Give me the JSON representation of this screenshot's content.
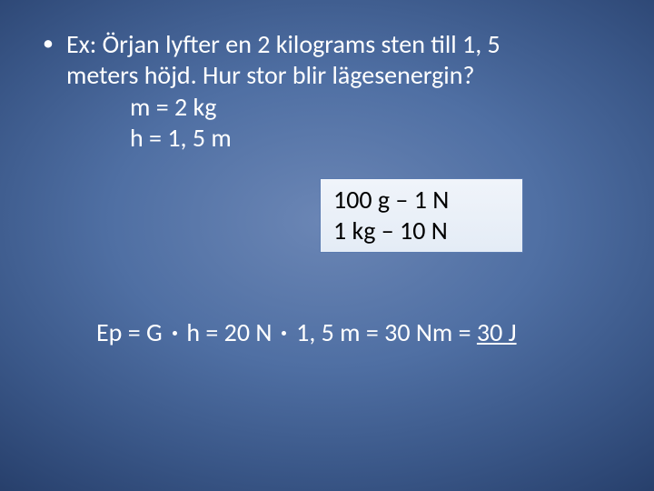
{
  "slide": {
    "background": {
      "type": "radial-gradient",
      "center_color": "#6b86b5",
      "outer_color": "#1a2f55"
    },
    "bullet": {
      "marker": "•",
      "line1": "Ex: Örjan lyfter en 2 kilograms sten till 1, 5",
      "line2": "meters höjd. Hur stor blir lägesenergin?"
    },
    "givens": {
      "mass": "m = 2 kg",
      "height": "h = 1, 5 m"
    },
    "info_box": {
      "line1": "100 g – 1 N",
      "line2": "1 kg – 10 N",
      "background_color": "#e8eff8",
      "border_color": "#5b7bb0",
      "text_color": "#000000"
    },
    "equation": {
      "lhs": "Ep = G",
      "op": "·",
      "mid1": "h = 20 N",
      "mid2": "1, 5 m = 30 Nm =",
      "result": "30 J"
    },
    "typography": {
      "body_fontsize_pt": 21,
      "font_family": "Calibri",
      "text_color": "#ffffff"
    }
  }
}
